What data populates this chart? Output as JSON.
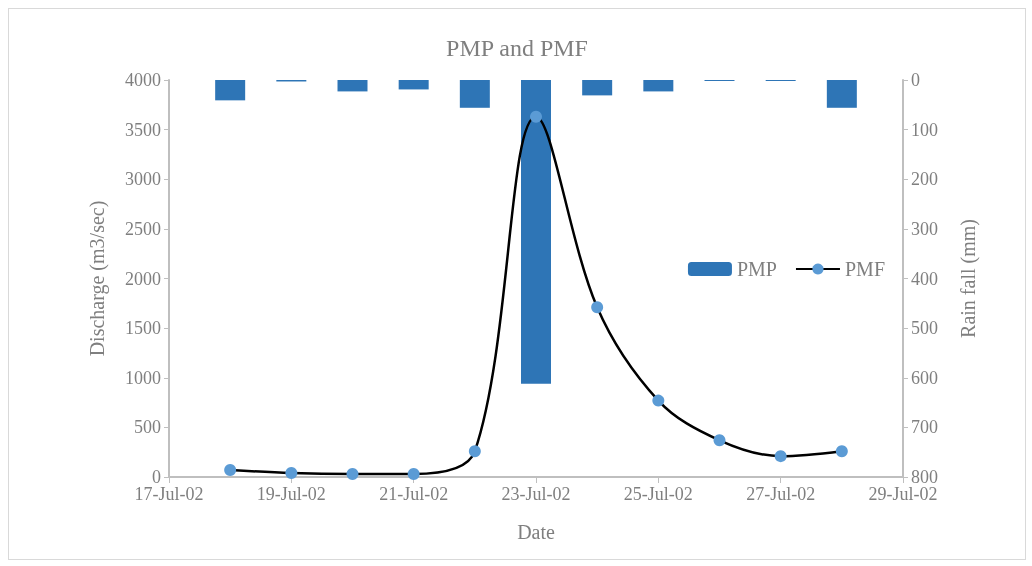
{
  "chart_data": {
    "type": "line",
    "title": "PMP and PMF",
    "xlabel": "Date",
    "ylabel": "Discharge (m3/sec)",
    "y2label": "Rain fall (mm)",
    "x": [
      "--07-18",
      "--07-19",
      "--07-20",
      "--07-21",
      "--07-22",
      "--07-23",
      "--07-24",
      "--07-25",
      "--07-26",
      "--07-27",
      "--07-28"
    ],
    "series": [
      {
        "name": "PMP",
        "type": "bar",
        "axis": "y2",
        "color": "#2e75b6",
        "x": [
          "--07-18",
          "--07-19",
          "--07-20",
          "--07-21",
          "--07-22",
          "--07-23",
          "--07-24",
          "--07-25",
          "--07-26",
          "--07-27",
          "--07-28"
        ],
        "values": [
          41,
          3,
          23,
          19,
          56,
          612,
          31,
          23,
          2,
          2,
          56
        ]
      },
      {
        "name": "PMF",
        "color": "#5b9bd5",
        "values": [
          70,
          40,
          30,
          30,
          260,
          3630,
          1710,
          770,
          370,
          210,
          260
        ]
      }
    ],
    "xlim": [
      "--07-17",
      "--07-29"
    ],
    "xticks": [
      {
        "value": "--07-17",
        "label": "17-Jul-02"
      },
      {
        "value": "--07-19",
        "label": "19-Jul-02"
      },
      {
        "value": "--07-21",
        "label": "21-Jul-02"
      },
      {
        "value": "--07-23",
        "label": "23-Jul-02"
      },
      {
        "value": "--07-25",
        "label": "25-Jul-02"
      },
      {
        "value": "--07-27",
        "label": "27-Jul-02"
      },
      {
        "value": "--07-29",
        "label": "29-Jul-02"
      }
    ],
    "ylim": [
      0,
      4000
    ],
    "yticks": [
      0,
      500,
      1000,
      1500,
      2000,
      2500,
      3000,
      3500,
      4000
    ],
    "y2lim": [
      800,
      0
    ],
    "y2ticks": [
      0,
      100,
      200,
      300,
      400,
      500,
      600,
      700,
      800
    ],
    "legend": "right",
    "marker": "circle",
    "line_style": "solid",
    "grid": false
  }
}
